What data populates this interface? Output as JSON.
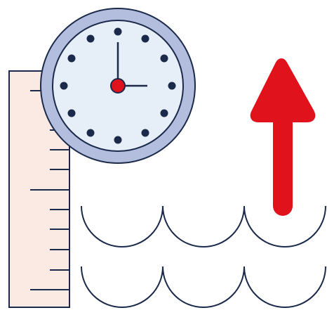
{
  "icon": {
    "name": "rising-water-level-over-time-icon",
    "parts": [
      "ruler-icon",
      "clock-icon",
      "up-arrow-icon",
      "waves-icon"
    ]
  },
  "colors": {
    "outline": "#1b2a4a",
    "ruler_fill": "#fbeae4",
    "clock_ring": "#b3bedf",
    "clock_face": "#e6eef8",
    "arrow": "#e0121c",
    "center_dot": "#e0121c"
  },
  "clock": {
    "shows_time": "3:00"
  }
}
